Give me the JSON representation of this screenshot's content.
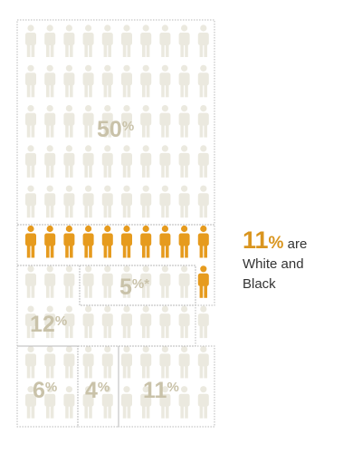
{
  "chart_data": {
    "type": "pictograph",
    "segments": [
      {
        "label": "50",
        "value": 50,
        "icons": 50,
        "highlight": false
      },
      {
        "label": "11",
        "value": 11,
        "icons": 11,
        "highlight": true
      },
      {
        "label": "5",
        "suffix": "*",
        "value": 5,
        "icons": 5,
        "highlight": false
      },
      {
        "label": "12",
        "value": 12,
        "icons": 12,
        "highlight": false
      },
      {
        "label": "6",
        "value": 6,
        "icons": 6,
        "highlight": false
      },
      {
        "label": "4",
        "value": 4,
        "icons": 4,
        "highlight": false
      },
      {
        "label": "11",
        "value": 11,
        "icons": 11,
        "highlight": false
      }
    ],
    "percent_symbol": "%",
    "callout": {
      "value": "11",
      "symbol": "%",
      "text_1": " are",
      "text_2": "White and",
      "text_3": "Black"
    }
  },
  "colors": {
    "icon": "#ebe9df",
    "highlight": "#e69b1e",
    "label": "#c9c2a9",
    "border": "#b8b8b8",
    "callout": "#d9951f"
  }
}
